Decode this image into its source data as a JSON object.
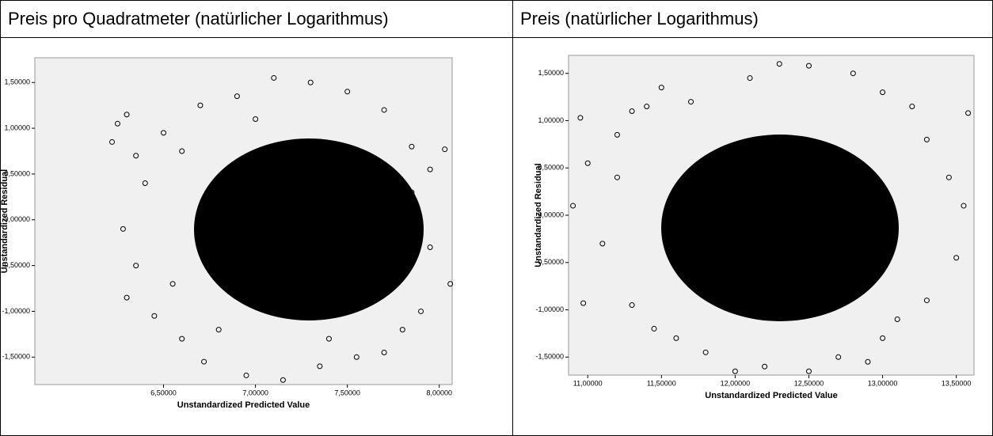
{
  "chart_data": [
    {
      "type": "scatter",
      "title": "Preis pro Quadratmeter (natürlicher Logarithmus)",
      "x_label": "Unstandardized Predicted Value",
      "y_label": "Unstandardized Residual",
      "xlim": [
        5.8,
        8.07
      ],
      "ylim": [
        -1.8,
        1.77
      ],
      "xticks": [
        {
          "value": 6.5,
          "label": "6,50000"
        },
        {
          "value": 7.0,
          "label": "7,00000"
        },
        {
          "value": 7.5,
          "label": "7,50000"
        },
        {
          "value": 8.0,
          "label": "8,00000"
        }
      ],
      "yticks": [
        {
          "value": 1.5,
          "label": "1,50000"
        },
        {
          "value": 1.0,
          "label": "1,00000"
        },
        {
          "value": 0.5,
          "label": "0,50000"
        },
        {
          "value": 0,
          "label": "0,00000"
        },
        {
          "value": -0.5,
          "label": "-0,50000"
        },
        {
          "value": -1.0,
          "label": "-1,00000"
        },
        {
          "value": -1.5,
          "label": "-1,50000"
        }
      ],
      "color": "#000000",
      "x": [
        6.25,
        6.3,
        6.22,
        6.35,
        6.28,
        6.3,
        6.45,
        6.5,
        6.6,
        6.7,
        6.72,
        6.9,
        6.95,
        7.1,
        7.15,
        7.3,
        7.35,
        7.5,
        7.55,
        7.7,
        7.7,
        7.85,
        7.9,
        7.95,
        8.03,
        8.06,
        7.8,
        6.4,
        6.35,
        6.55,
        7.95,
        7.0,
        7.4,
        6.6,
        7.85,
        6.8
      ],
      "y": [
        1.05,
        1.15,
        0.85,
        0.7,
        -0.1,
        -0.85,
        -1.05,
        0.95,
        -1.3,
        1.25,
        -1.55,
        1.35,
        -1.7,
        1.55,
        -1.75,
        1.5,
        -1.6,
        1.4,
        -1.5,
        1.2,
        -1.45,
        0.8,
        -1.0,
        0.55,
        0.77,
        -0.7,
        -1.2,
        0.4,
        -0.5,
        -0.7,
        -0.3,
        1.1,
        -1.3,
        0.75,
        0.3,
        -1.2
      ]
    },
    {
      "type": "scatter",
      "title": "Preis (natürlicher Logarithmus)",
      "x_label": "Unstandardized Predicted Value",
      "y_label": "Unstandardized Residual",
      "xlim": [
        10.87,
        13.62
      ],
      "ylim": [
        -1.69,
        1.69
      ],
      "xticks": [
        {
          "value": 11.0,
          "label": "11,00000"
        },
        {
          "value": 11.5,
          "label": "11,50000"
        },
        {
          "value": 12.0,
          "label": "12,00000"
        },
        {
          "value": 12.5,
          "label": "12,50000"
        },
        {
          "value": 13.0,
          "label": "13,00000"
        },
        {
          "value": 13.5,
          "label": "13,50000"
        }
      ],
      "yticks": [
        {
          "value": 1.5,
          "label": "1,50000"
        },
        {
          "value": 1.0,
          "label": "1,00000"
        },
        {
          "value": 0.5,
          "label": "0,50000"
        },
        {
          "value": 0,
          "label": "0,00000"
        },
        {
          "value": -0.5,
          "label": "-0,50000"
        },
        {
          "value": -1.0,
          "label": "-1,00000"
        },
        {
          "value": -1.5,
          "label": "-1,50000"
        }
      ],
      "color": "#000000",
      "x": [
        10.95,
        10.97,
        10.9,
        11.0,
        11.2,
        11.3,
        11.4,
        11.5,
        11.3,
        11.45,
        11.6,
        11.8,
        12.0,
        12.2,
        12.5,
        12.7,
        12.9,
        12.3,
        12.5,
        12.1,
        12.8,
        13.0,
        13.2,
        13.3,
        13.45,
        13.55,
        13.5,
        13.3,
        13.1,
        13.58,
        11.1,
        11.2,
        13.0,
        11.7
      ],
      "y": [
        1.03,
        -0.93,
        0.1,
        0.55,
        0.85,
        1.1,
        1.15,
        1.35,
        -0.95,
        -1.2,
        -1.3,
        -1.45,
        -1.65,
        -1.6,
        -1.65,
        -1.5,
        -1.55,
        1.6,
        1.58,
        1.45,
        1.5,
        1.3,
        1.15,
        0.8,
        0.4,
        0.1,
        -0.45,
        -0.9,
        -1.1,
        1.08,
        -0.3,
        0.4,
        -1.3,
        1.2
      ]
    }
  ]
}
